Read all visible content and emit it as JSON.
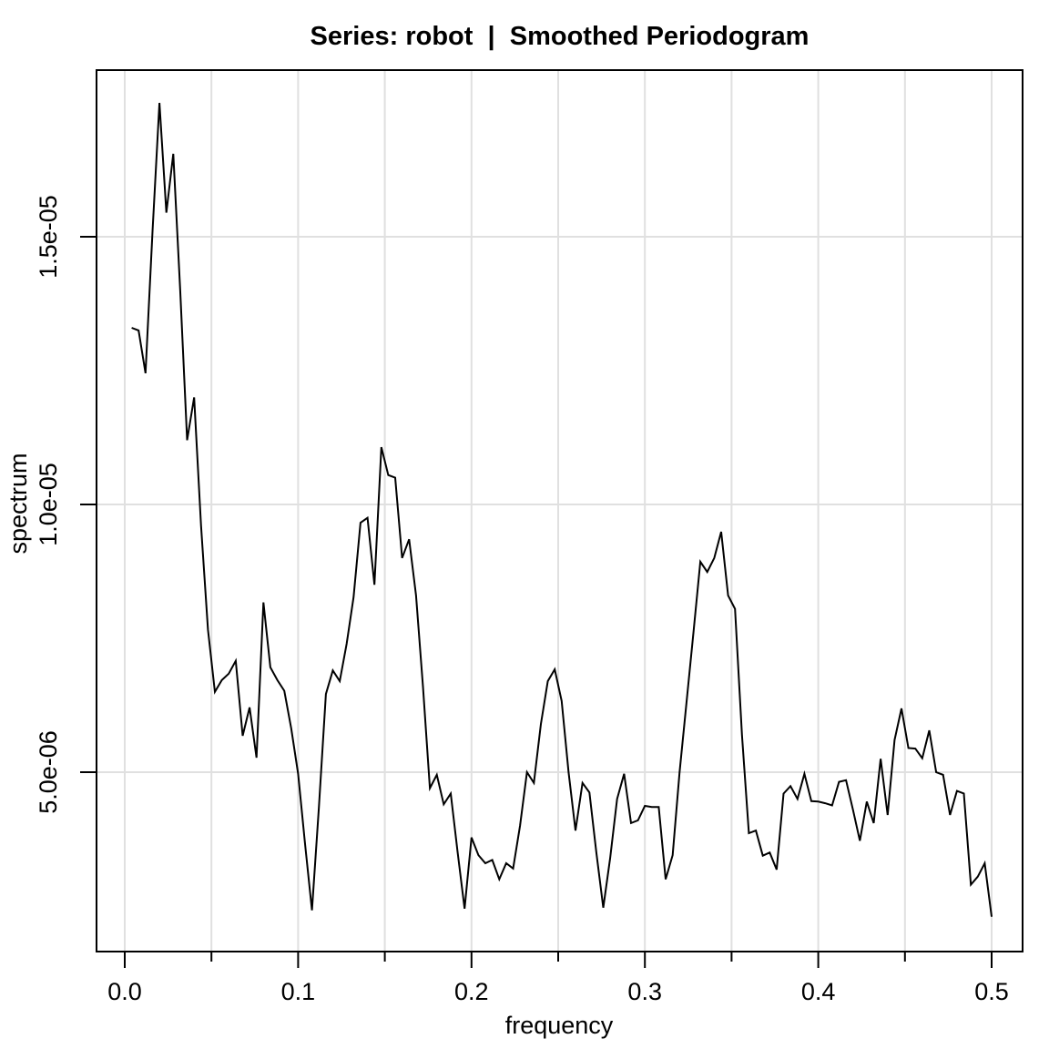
{
  "title": "Series: robot  |  Smoothed Periodogram",
  "x_axis": {
    "label": "frequency",
    "tick_labels": [
      "0.0",
      "0.1",
      "0.2",
      "0.3",
      "0.4",
      "0.5"
    ],
    "tick_values": [
      0.0,
      0.1,
      0.2,
      0.3,
      0.4,
      0.5
    ],
    "minor_tick_values": [
      0.05,
      0.15,
      0.25,
      0.35,
      0.45
    ],
    "range": [
      0.0,
      0.5
    ]
  },
  "y_axis": {
    "label": "spectrum",
    "tick_labels": [
      "5.0e-06",
      "1.0e-05",
      "1.5e-05"
    ],
    "tick_values": [
      5e-06,
      1e-05,
      1.5e-05
    ],
    "range": [
      1.65e-06,
      1.81e-05
    ]
  },
  "colors": {
    "line": "#000000",
    "grid": "#e0e0e0",
    "box": "#000000",
    "background": "#ffffff",
    "text": "#000000"
  },
  "chart_data": {
    "type": "line",
    "title": "Series: robot  |  Smoothed Periodogram",
    "xlabel": "frequency",
    "ylabel": "spectrum",
    "xlim": [
      0.0,
      0.5
    ],
    "ylim": [
      1.65e-06,
      1.81e-05
    ],
    "grid": true,
    "legend": "none",
    "x": [
      0.004,
      0.008,
      0.012,
      0.016,
      0.02,
      0.024,
      0.028,
      0.032,
      0.036,
      0.04,
      0.044,
      0.048,
      0.052,
      0.056,
      0.06,
      0.064,
      0.068,
      0.072,
      0.076,
      0.08,
      0.084,
      0.088,
      0.092,
      0.096,
      0.1,
      0.104,
      0.108,
      0.112,
      0.116,
      0.12,
      0.124,
      0.128,
      0.132,
      0.136,
      0.14,
      0.144,
      0.148,
      0.152,
      0.156,
      0.16,
      0.164,
      0.168,
      0.172,
      0.176,
      0.18,
      0.184,
      0.188,
      0.192,
      0.196,
      0.2,
      0.204,
      0.208,
      0.212,
      0.216,
      0.22,
      0.224,
      0.228,
      0.232,
      0.236,
      0.24,
      0.244,
      0.248,
      0.252,
      0.256,
      0.26,
      0.264,
      0.268,
      0.272,
      0.276,
      0.28,
      0.284,
      0.288,
      0.292,
      0.296,
      0.3,
      0.304,
      0.308,
      0.312,
      0.316,
      0.32,
      0.324,
      0.328,
      0.332,
      0.336,
      0.34,
      0.344,
      0.348,
      0.352,
      0.356,
      0.36,
      0.364,
      0.368,
      0.372,
      0.376,
      0.38,
      0.384,
      0.388,
      0.392,
      0.396,
      0.4,
      0.404,
      0.408,
      0.412,
      0.416,
      0.42,
      0.424,
      0.428,
      0.432,
      0.436,
      0.44,
      0.444,
      0.448,
      0.452,
      0.456,
      0.46,
      0.464,
      0.468,
      0.472,
      0.476,
      0.48,
      0.484,
      0.488,
      0.492,
      0.496,
      0.5
    ],
    "y": [
      1.33e-05,
      1.325e-05,
      1.245e-05,
      1.51e-05,
      1.75e-05,
      1.545e-05,
      1.655e-05,
      1.4e-05,
      1.12e-05,
      1.2e-05,
      9.6e-06,
      7.66e-06,
      6.5e-06,
      6.72e-06,
      6.84e-06,
      7.08e-06,
      5.68e-06,
      6.21e-06,
      5.27e-06,
      8.17e-06,
      6.96e-06,
      6.72e-06,
      6.52e-06,
      5.82e-06,
      4.97e-06,
      3.66e-06,
      2.42e-06,
      4.34e-06,
      6.46e-06,
      6.9e-06,
      6.7e-06,
      7.4e-06,
      8.27e-06,
      9.66e-06,
      9.75e-06,
      8.5e-06,
      1.107e-05,
      1.055e-05,
      1.05e-05,
      9e-06,
      9.35e-06,
      8.3e-06,
      6.6e-06,
      4.7e-06,
      4.95e-06,
      4.4e-06,
      4.6e-06,
      3.5e-06,
      2.45e-06,
      3.78e-06,
      3.45e-06,
      3.3e-06,
      3.36e-06,
      3e-06,
      3.3e-06,
      3.2e-06,
      4e-06,
      5e-06,
      4.8e-06,
      5.9e-06,
      6.7e-06,
      6.92e-06,
      6.33e-06,
      5e-06,
      3.91e-06,
      4.8e-06,
      4.62e-06,
      3.5e-06,
      2.47e-06,
      3.4e-06,
      4.5e-06,
      4.97e-06,
      4.05e-06,
      4.1e-06,
      4.37e-06,
      4.35e-06,
      4.35e-06,
      3e-06,
      3.45e-06,
      5e-06,
      6.3e-06,
      7.6e-06,
      8.93e-06,
      8.74e-06,
      9e-06,
      9.49e-06,
      8.3e-06,
      8.05e-06,
      5.7e-06,
      3.86e-06,
      3.91e-06,
      3.44e-06,
      3.5e-06,
      3.18e-06,
      4.6e-06,
      4.74e-06,
      4.5e-06,
      4.97e-06,
      4.46e-06,
      4.45e-06,
      4.42e-06,
      4.38e-06,
      4.82e-06,
      4.85e-06,
      4.3e-06,
      3.72e-06,
      4.45e-06,
      4.05e-06,
      5.25e-06,
      4.2e-06,
      5.6e-06,
      6.19e-06,
      5.45e-06,
      5.44e-06,
      5.26e-06,
      5.78e-06,
      5e-06,
      4.95e-06,
      4.2e-06,
      4.65e-06,
      4.6e-06,
      2.9e-06,
      3.05e-06,
      3.3e-06,
      2.3e-06
    ]
  }
}
